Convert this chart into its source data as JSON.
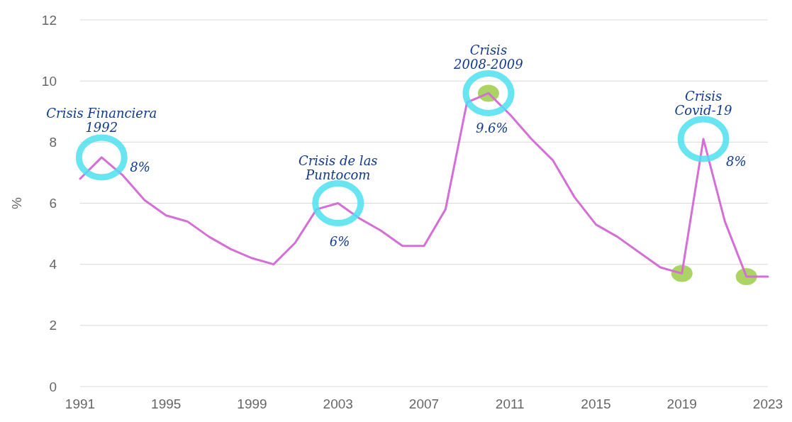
{
  "chart_data": {
    "type": "line",
    "ylabel": "%",
    "x": [
      1991,
      1992,
      1993,
      1994,
      1995,
      1996,
      1997,
      1998,
      1999,
      2000,
      2001,
      2002,
      2003,
      2004,
      2005,
      2006,
      2007,
      2008,
      2009,
      2010,
      2011,
      2012,
      2013,
      2014,
      2015,
      2016,
      2017,
      2018,
      2019,
      2020,
      2021,
      2022,
      2023
    ],
    "series": [
      {
        "color": "#d46fd6",
        "values": [
          6.8,
          7.5,
          6.9,
          6.1,
          5.6,
          5.4,
          4.9,
          4.5,
          4.2,
          4.0,
          4.7,
          5.8,
          6.0,
          5.5,
          5.1,
          4.6,
          4.6,
          5.8,
          9.3,
          9.6,
          8.9,
          8.1,
          7.4,
          6.2,
          5.3,
          4.9,
          4.4,
          3.9,
          3.7,
          8.1,
          5.4,
          3.6,
          3.6
        ]
      }
    ],
    "xlim": [
      1991,
      2023
    ],
    "xticks": [
      1991,
      1995,
      1999,
      2003,
      2007,
      2011,
      2015,
      2019,
      2023
    ],
    "ylim": [
      0,
      12
    ],
    "yticks": [
      0,
      2,
      4,
      6,
      8,
      10,
      12
    ],
    "grid": "y",
    "marker": "none",
    "line_style": "solid",
    "annotations": [
      {
        "text": "Crisis Financiera 1992",
        "x": 1992,
        "y": 7.5
      },
      {
        "text": "8%",
        "x": 1992,
        "y": 7.5
      },
      {
        "text": "Crisis de las Puntocom",
        "x": 2003,
        "y": 6.0
      },
      {
        "text": "6%",
        "x": 2003,
        "y": 6.0
      },
      {
        "text": "Crisis 2008-2009",
        "x": 2010,
        "y": 9.6
      },
      {
        "text": "9.6%",
        "x": 2010,
        "y": 9.6
      },
      {
        "text": "Crisis Covid-19",
        "x": 2020,
        "y": 8.1
      },
      {
        "text": "8%",
        "x": 2020,
        "y": 8.1
      }
    ]
  }
}
